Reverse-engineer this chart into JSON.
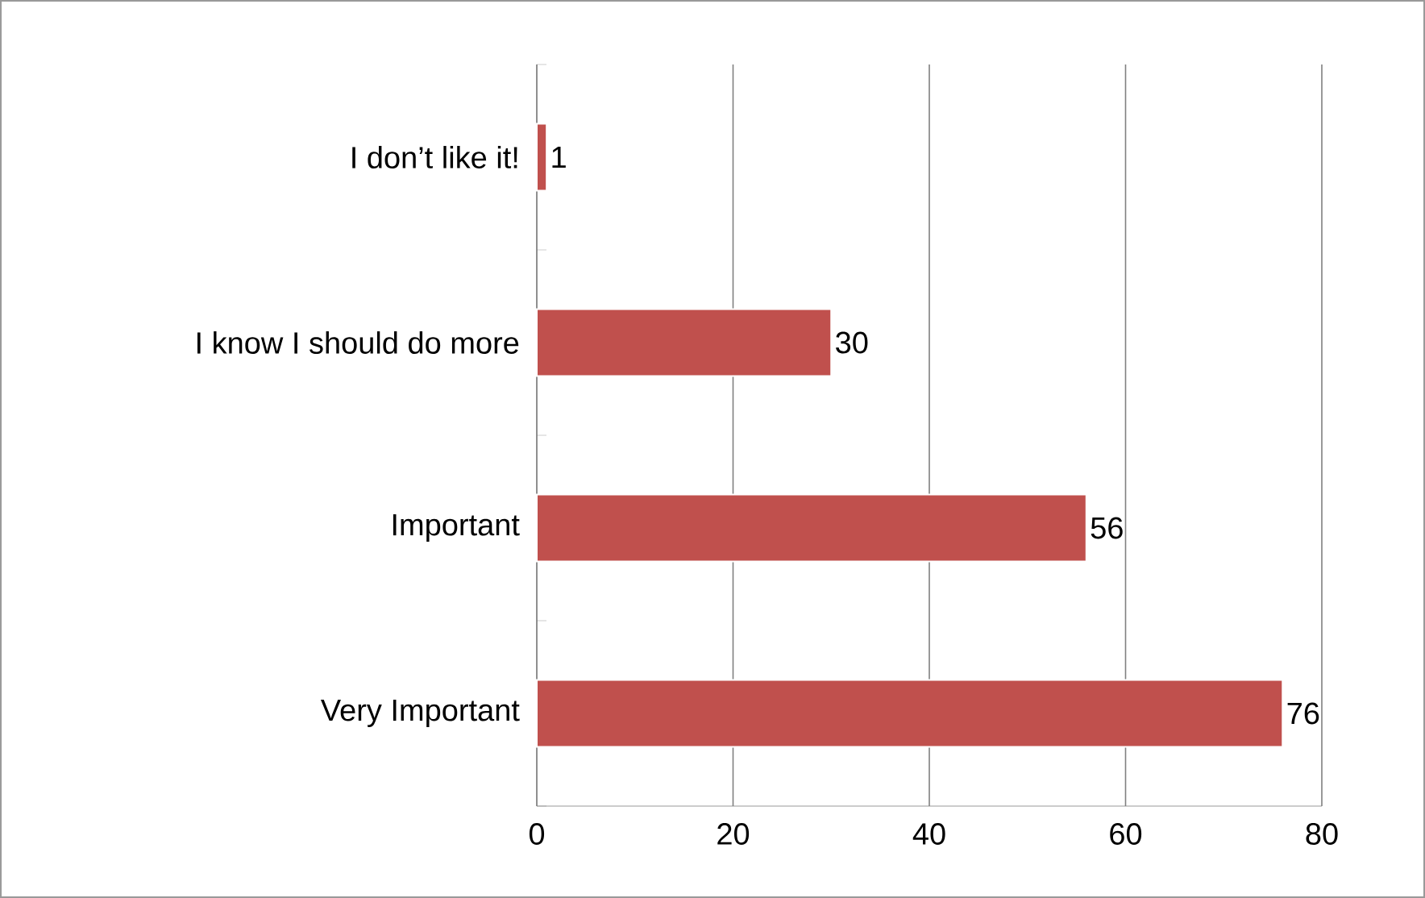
{
  "chart_data": {
    "type": "bar",
    "orientation": "horizontal",
    "categories": [
      "I don’t like it!",
      "I know I should do more",
      "Important",
      "Very Important"
    ],
    "values": [
      1,
      30,
      56,
      76
    ],
    "color": "#c0504d",
    "xlim": [
      0,
      80
    ],
    "xticks": [
      0,
      20,
      40,
      60,
      80
    ],
    "grid": "x",
    "data_labels": true
  }
}
